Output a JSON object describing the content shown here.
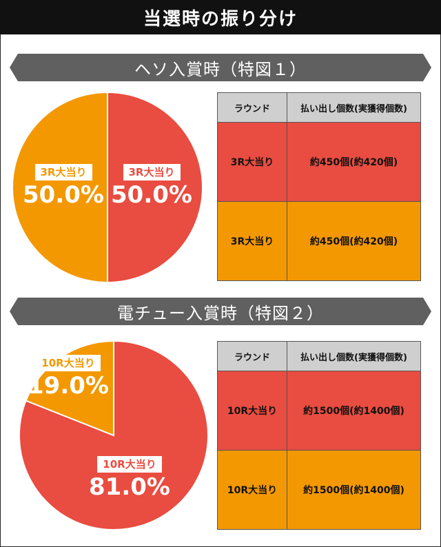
{
  "page_title": "当選時の振り分け",
  "colors": {
    "red": "#e94c40",
    "orange": "#f39800",
    "title_bg": "#111111",
    "section_bg": "#606060"
  },
  "sections": [
    {
      "heading": "ヘソ入賞時（特図１）",
      "table": {
        "headers": [
          "ラウンド",
          "払い出し個数(実獲得個数)"
        ],
        "rows": [
          {
            "round": "3R大当り",
            "payout": "約450個(約420個)"
          },
          {
            "round": "3R大当り",
            "payout": "約450個(約420個)"
          }
        ]
      }
    },
    {
      "heading": "電チュー入賞時（特図２）",
      "table": {
        "headers": [
          "ラウンド",
          "払い出し個数(実獲得個数)"
        ],
        "rows": [
          {
            "round": "10R大当り",
            "payout": "約1500個(約1400個)"
          },
          {
            "round": "10R大当り",
            "payout": "約1500個(約1400個)"
          }
        ]
      }
    }
  ],
  "chart_data": [
    {
      "type": "pie",
      "slices": [
        {
          "label": "3R大当り",
          "value": 50.0,
          "display": "50.0%",
          "color": "#e94c40"
        },
        {
          "label": "3R大当り",
          "value": 50.0,
          "display": "50.0%",
          "color": "#f39800"
        }
      ]
    },
    {
      "type": "pie",
      "slices": [
        {
          "label": "10R大当り",
          "value": 81.0,
          "display": "81.0%",
          "color": "#e94c40"
        },
        {
          "label": "10R大当り",
          "value": 19.0,
          "display": "19.0%",
          "color": "#f39800"
        }
      ]
    }
  ]
}
